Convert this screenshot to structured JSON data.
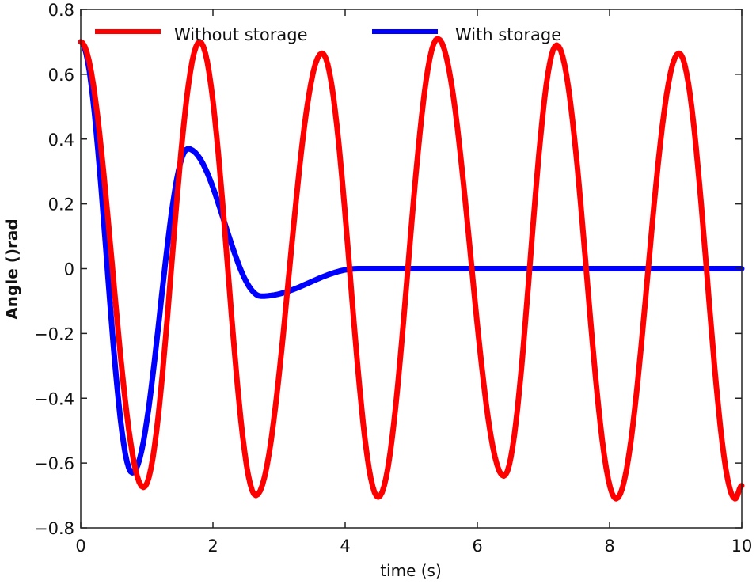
{
  "chart_data": {
    "type": "line",
    "title": "",
    "xlabel": "time (s)",
    "ylabel": "Angle ()rad",
    "xlim": [
      0,
      10
    ],
    "ylim": [
      -0.8,
      0.8
    ],
    "xticks": [
      0,
      2,
      4,
      6,
      8,
      10
    ],
    "yticks": [
      0.8,
      0.6,
      0.4,
      0.2,
      0,
      -0.2,
      -0.4,
      -0.6,
      -0.8
    ],
    "xtick_labels": [
      "0",
      "2",
      "4",
      "6",
      "8",
      "10"
    ],
    "ytick_labels": [
      "0.8",
      "0.6",
      "0.4",
      "0.2",
      "0",
      "-0.2",
      "-0.4",
      "-0.6",
      "-0.8"
    ],
    "grid": false,
    "legend_position": "top",
    "series": [
      {
        "name": "Without storage",
        "color": "#ff0000",
        "extrema": [
          [
            0,
            0.7
          ],
          [
            0.95,
            -0.675
          ],
          [
            1.8,
            0.7
          ],
          [
            2.65,
            -0.7
          ],
          [
            3.65,
            0.665
          ],
          [
            4.5,
            -0.705
          ],
          [
            5.4,
            0.71
          ],
          [
            6.4,
            -0.64
          ],
          [
            7.2,
            0.69
          ],
          [
            8.1,
            -0.71
          ],
          [
            9.05,
            0.665
          ],
          [
            9.9,
            -0.71
          ],
          [
            10,
            -0.67
          ]
        ]
      },
      {
        "name": "With storage",
        "color": "#0000ff",
        "extrema": [
          [
            0,
            0.7
          ],
          [
            0.78,
            -0.63
          ],
          [
            1.62,
            0.37
          ],
          [
            2.73,
            -0.085
          ],
          [
            4.2,
            0.0
          ],
          [
            10,
            0.0
          ]
        ]
      }
    ]
  }
}
